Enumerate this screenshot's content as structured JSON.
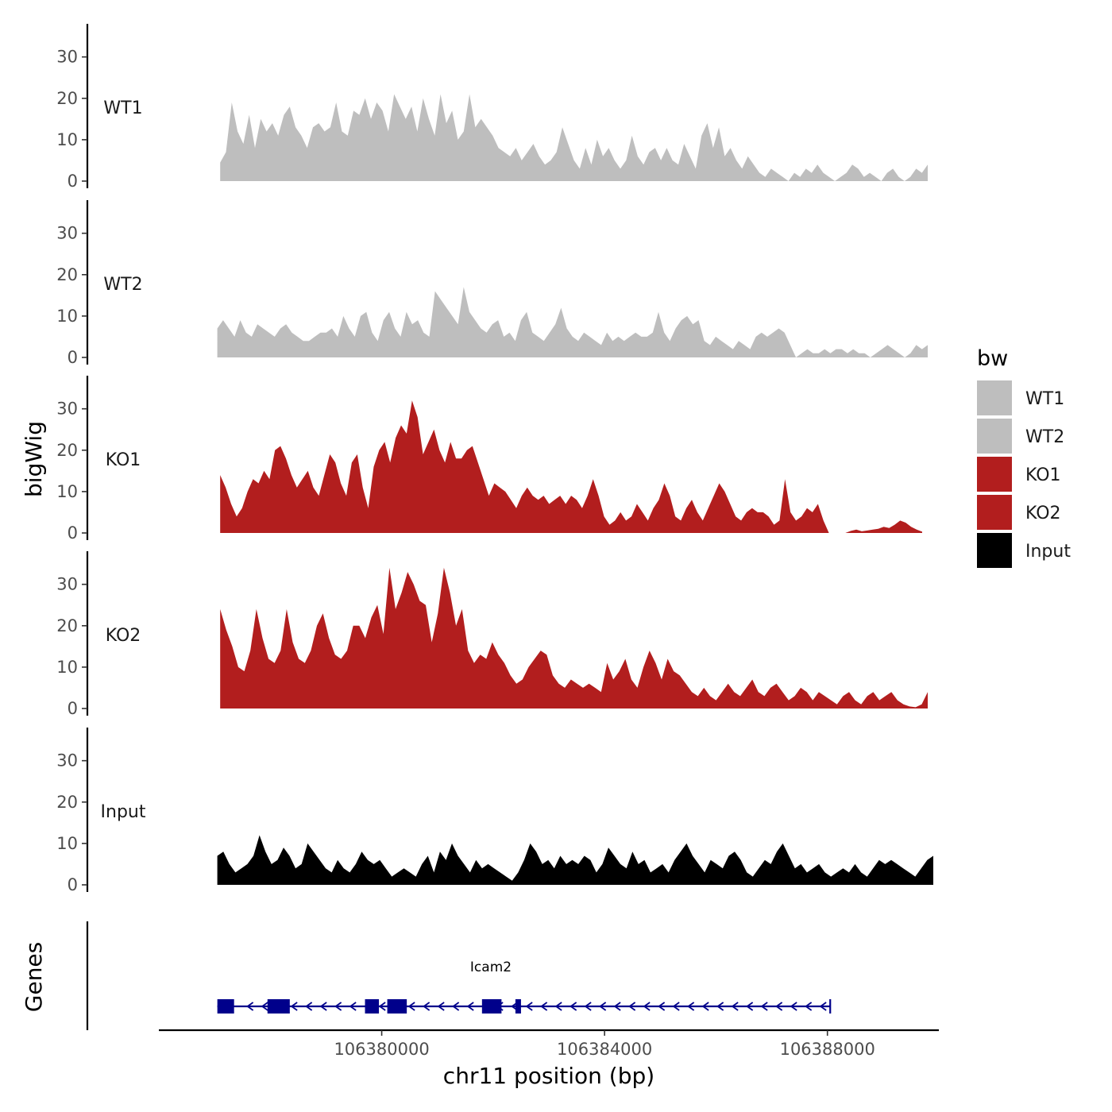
{
  "chart_data": {
    "type": "area",
    "ylabel": "bigWig",
    "xlabel": "chr11 position (bp)",
    "genes_label": "Genes",
    "chromosome": "chr11",
    "xlim": [
      106376000,
      106390000
    ],
    "x_tick_labels": [
      "106380000",
      "106384000",
      "106388000"
    ],
    "ylim": [
      0,
      38
    ],
    "y_tick_labels": [
      "0",
      "10",
      "20",
      "30"
    ],
    "legend": {
      "title": "bw",
      "entries": [
        {
          "label": "WT1",
          "color": "#bebebe"
        },
        {
          "label": "WT2",
          "color": "#bebebe"
        },
        {
          "label": "KO1",
          "color": "#b21e1e"
        },
        {
          "label": "KO2",
          "color": "#b21e1e"
        },
        {
          "label": "Input",
          "color": "#000000"
        }
      ]
    },
    "series": [
      {
        "name": "WT1",
        "color": "#bebebe",
        "x_start": 106377100,
        "x_end": 106389800,
        "values": [
          4.5,
          7,
          19,
          12,
          9,
          16,
          8,
          15,
          12,
          14,
          11,
          16,
          18,
          13,
          11,
          8,
          13,
          14,
          12,
          13,
          19,
          12,
          11,
          17,
          16,
          20,
          15,
          19,
          17,
          12,
          21,
          18,
          15,
          18,
          12,
          20,
          15,
          11,
          21,
          14,
          17,
          10,
          12,
          21,
          13,
          15,
          13,
          11,
          8,
          7,
          6,
          8,
          5,
          7,
          9,
          6,
          4,
          5,
          7,
          13,
          9,
          5,
          3,
          8,
          4,
          10,
          6,
          8,
          5,
          3,
          5,
          11,
          6,
          4,
          7,
          8,
          5,
          8,
          5,
          4,
          9,
          6,
          3,
          11,
          14,
          8,
          13,
          6,
          8,
          5,
          3,
          6,
          4,
          2,
          1,
          3,
          2,
          1,
          0,
          2,
          1,
          3,
          2,
          4,
          2,
          1,
          0,
          1,
          2,
          4,
          3,
          1,
          2,
          1,
          0,
          2,
          3,
          1,
          0,
          1,
          3,
          2,
          4
        ]
      },
      {
        "name": "WT2",
        "color": "#bebebe",
        "x_start": 106377050,
        "x_end": 106389800,
        "values": [
          7,
          9,
          7,
          5,
          9,
          6,
          5,
          8,
          7,
          6,
          5,
          7,
          8,
          6,
          5,
          4,
          4,
          5,
          6,
          6,
          7,
          5,
          10,
          7,
          5,
          10,
          11,
          6,
          4,
          9,
          11,
          7,
          5,
          11,
          8,
          9,
          6,
          5,
          16,
          14,
          12,
          10,
          8,
          17,
          11,
          9,
          7,
          6,
          8,
          9,
          5,
          6,
          4,
          9,
          11,
          6,
          5,
          4,
          6,
          8,
          12,
          7,
          5,
          4,
          6,
          5,
          4,
          3,
          6,
          4,
          5,
          4,
          5,
          6,
          5,
          5,
          6,
          11,
          6,
          4,
          7,
          9,
          10,
          8,
          9,
          4,
          3,
          5,
          4,
          3,
          2,
          4,
          3,
          2,
          5,
          6,
          5,
          6,
          7,
          6,
          3,
          0,
          1,
          2,
          1,
          1,
          2,
          1,
          2,
          2,
          1,
          2,
          1,
          1,
          0,
          1,
          2,
          3,
          2,
          1,
          0,
          1,
          3,
          2,
          3
        ]
      },
      {
        "name": "KO1",
        "color": "#b21e1e",
        "x_start": 106377100,
        "x_end": 106389700,
        "values": [
          14,
          11,
          7,
          4,
          6,
          10,
          13,
          12,
          15,
          13,
          20,
          21,
          18,
          14,
          11,
          13,
          15,
          11,
          9,
          14,
          19,
          17,
          12,
          9,
          17,
          19,
          11,
          6,
          16,
          20,
          22,
          17,
          23,
          26,
          24,
          32,
          28,
          19,
          22,
          25,
          20,
          17,
          22,
          18,
          18,
          20,
          21,
          17,
          13,
          9,
          12,
          11,
          10,
          8,
          6,
          9,
          11,
          9,
          8,
          9,
          7,
          8,
          9,
          7,
          9,
          8,
          6,
          9,
          13,
          9,
          4,
          2,
          3,
          5,
          3,
          4,
          7,
          5,
          3,
          6,
          8,
          12,
          9,
          4,
          3,
          6,
          8,
          5,
          3,
          6,
          9,
          12,
          10,
          7,
          4,
          3,
          5,
          6,
          5,
          5,
          4,
          2,
          3,
          13,
          5,
          3,
          4,
          6,
          5,
          7,
          3,
          0,
          0,
          0,
          0,
          0.5,
          0.8,
          0.4,
          0.6,
          0.8,
          1,
          1.5,
          1.2,
          2,
          3,
          2.5,
          1.5,
          0.8,
          0.3
        ]
      },
      {
        "name": "KO2",
        "color": "#b21e1e",
        "x_start": 106377100,
        "x_end": 106389800,
        "values": [
          24,
          19,
          15,
          10,
          9,
          14,
          24,
          17,
          12,
          11,
          14,
          24,
          16,
          12,
          11,
          14,
          20,
          23,
          17,
          13,
          12,
          14,
          20,
          20,
          17,
          22,
          25,
          18,
          34,
          24,
          28,
          33,
          30,
          26,
          25,
          16,
          23,
          34,
          28,
          20,
          24,
          14,
          11,
          13,
          12,
          16,
          13,
          11,
          8,
          6,
          7,
          10,
          12,
          14,
          13,
          8,
          6,
          5,
          7,
          6,
          5,
          6,
          5,
          4,
          11,
          7,
          9,
          12,
          7,
          5,
          10,
          14,
          11,
          7,
          12,
          9,
          8,
          6,
          4,
          3,
          5,
          3,
          2,
          4,
          6,
          4,
          3,
          5,
          7,
          4,
          3,
          5,
          6,
          4,
          2,
          3,
          5,
          4,
          2,
          4,
          3,
          2,
          1,
          3,
          4,
          2,
          1,
          3,
          4,
          2,
          3,
          4,
          2,
          1,
          0.5,
          0.3,
          1,
          4
        ]
      },
      {
        "name": "Input",
        "color": "#000000",
        "x_start": 106377050,
        "x_end": 106389900,
        "values": [
          7,
          8,
          5,
          3,
          4,
          5,
          7,
          12,
          8,
          5,
          6,
          9,
          7,
          4,
          5,
          10,
          8,
          6,
          4,
          3,
          6,
          4,
          3,
          5,
          8,
          6,
          5,
          6,
          4,
          2,
          3,
          4,
          3,
          2,
          5,
          7,
          3,
          8,
          6,
          10,
          7,
          5,
          3,
          6,
          4,
          5,
          4,
          3,
          2,
          1,
          3,
          6,
          10,
          8,
          5,
          6,
          4,
          7,
          5,
          6,
          5,
          7,
          6,
          3,
          5,
          9,
          7,
          5,
          4,
          8,
          5,
          6,
          3,
          4,
          5,
          3,
          6,
          8,
          10,
          7,
          5,
          3,
          6,
          5,
          4,
          7,
          8,
          6,
          3,
          2,
          4,
          6,
          5,
          8,
          10,
          7,
          4,
          5,
          3,
          4,
          5,
          3,
          2,
          3,
          4,
          3,
          5,
          3,
          2,
          4,
          6,
          5,
          6,
          5,
          4,
          3,
          2,
          4,
          6,
          7
        ]
      }
    ],
    "gene_track": {
      "name": "Icam2",
      "strand": "-",
      "color": "#00008b",
      "start": 106377050,
      "end": 106388050,
      "exons": [
        [
          106377050,
          106377350
        ],
        [
          106377950,
          106378350
        ],
        [
          106379700,
          106379950
        ],
        [
          106380100,
          106380450
        ],
        [
          106381800,
          106382150
        ],
        [
          106382400,
          106382500
        ]
      ]
    }
  }
}
